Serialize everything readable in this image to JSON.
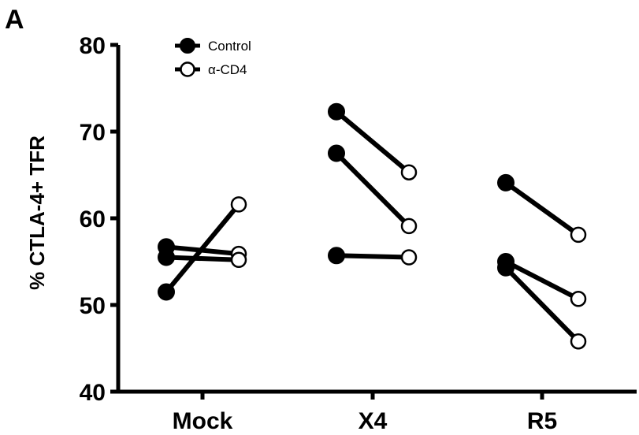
{
  "panel_letter": "A",
  "chart_data": {
    "type": "scatter",
    "title": "",
    "xlabel": "",
    "ylabel": "% CTLA-4+ TFR",
    "ylim": [
      40,
      80
    ],
    "yticks": [
      40,
      50,
      60,
      70,
      80
    ],
    "categories": [
      "Mock",
      "X4",
      "R5"
    ],
    "legend": {
      "placement": "top-left",
      "entries": [
        {
          "name": "Control",
          "marker": "filled-circle"
        },
        {
          "name": "α-CD4",
          "marker": "open-circle"
        }
      ]
    },
    "grid": false,
    "pairs": [
      {
        "category": "Mock",
        "control": 56.7,
        "treated": 55.9
      },
      {
        "category": "Mock",
        "control": 55.5,
        "treated": 55.2
      },
      {
        "category": "Mock",
        "control": 51.5,
        "treated": 61.6
      },
      {
        "category": "X4",
        "control": 72.3,
        "treated": 65.3
      },
      {
        "category": "X4",
        "control": 67.5,
        "treated": 59.1
      },
      {
        "category": "X4",
        "control": 55.7,
        "treated": 55.5
      },
      {
        "category": "R5",
        "control": 64.1,
        "treated": 58.1
      },
      {
        "category": "R5",
        "control": 55.0,
        "treated": 50.7
      },
      {
        "category": "R5",
        "control": 54.3,
        "treated": 45.8
      }
    ]
  }
}
